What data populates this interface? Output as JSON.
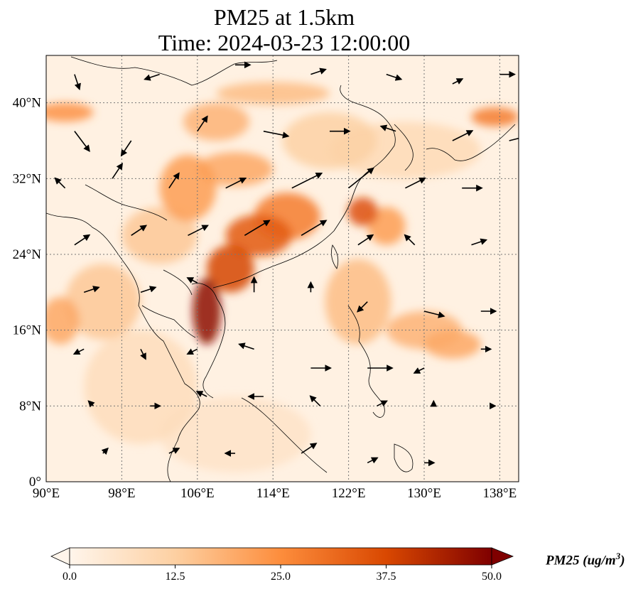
{
  "title": {
    "line1": "PM25 at 1.5km",
    "line2": "Time: 2024-03-23 12:00:00"
  },
  "map": {
    "projection": "PlateCarree",
    "lon_range": [
      90,
      140
    ],
    "lat_range": [
      0,
      45
    ],
    "gridlines": "dotted",
    "coastlines": true,
    "borders": true,
    "lon_ticks": [
      {
        "value": 90,
        "label": "90°E"
      },
      {
        "value": 98,
        "label": "98°E"
      },
      {
        "value": 106,
        "label": "106°E"
      },
      {
        "value": 114,
        "label": "114°E"
      },
      {
        "value": 122,
        "label": "122°E"
      },
      {
        "value": 130,
        "label": "130°E"
      },
      {
        "value": 138,
        "label": "138°E"
      }
    ],
    "lat_ticks": [
      {
        "value": 0,
        "label": "0°"
      },
      {
        "value": 8,
        "label": "8°N"
      },
      {
        "value": 16,
        "label": "16°N"
      },
      {
        "value": 24,
        "label": "24°N"
      },
      {
        "value": 32,
        "label": "32°N"
      },
      {
        "value": 40,
        "label": "40°N"
      }
    ]
  },
  "colorbar": {
    "title": "PM25 (ug/m3)",
    "title_main": "PM25 (ug/m",
    "title_sup": "3",
    "title_end": ")",
    "min": 0,
    "max": 50,
    "extend": "both",
    "colormap": [
      "#fff5eb",
      "#fdd0a2",
      "#fd8d3c",
      "#d94801",
      "#7f0000"
    ],
    "ticks": [
      "0.0",
      "12.5",
      "25.0",
      "37.5",
      "50.0"
    ]
  },
  "pm25_plumes": [
    {
      "lon": 107.0,
      "lat": 18.0,
      "rlon": 1.5,
      "rlat": 3.5,
      "val": 48
    },
    {
      "lon": 109.5,
      "lat": 22.5,
      "rlon": 2.5,
      "rlat": 2.5,
      "val": 38
    },
    {
      "lon": 112.5,
      "lat": 26.0,
      "rlon": 3.5,
      "rlat": 2.2,
      "val": 34
    },
    {
      "lon": 115.5,
      "lat": 28.0,
      "rlon": 3.5,
      "rlat": 2.5,
      "val": 28
    },
    {
      "lon": 123.5,
      "lat": 28.5,
      "rlon": 1.6,
      "rlat": 1.5,
      "val": 36
    },
    {
      "lon": 105.0,
      "lat": 31.0,
      "rlon": 3.0,
      "rlat": 3.5,
      "val": 22
    },
    {
      "lon": 110.0,
      "lat": 33.0,
      "rlon": 4.0,
      "rlat": 1.8,
      "val": 20
    },
    {
      "lon": 108.0,
      "lat": 38.0,
      "rlon": 3.5,
      "rlat": 2.0,
      "val": 18
    },
    {
      "lon": 114.0,
      "lat": 41.0,
      "rlon": 6.0,
      "rlat": 1.2,
      "val": 16
    },
    {
      "lon": 92.0,
      "lat": 39.0,
      "rlon": 3.0,
      "rlat": 1.0,
      "val": 24
    },
    {
      "lon": 137.5,
      "lat": 38.5,
      "rlon": 2.5,
      "rlat": 1.0,
      "val": 28
    },
    {
      "lon": 91.5,
      "lat": 17.0,
      "rlon": 2.0,
      "rlat": 2.5,
      "val": 20
    },
    {
      "lon": 96.0,
      "lat": 19.0,
      "rlon": 4.0,
      "rlat": 4.0,
      "val": 14
    },
    {
      "lon": 102.0,
      "lat": 26.0,
      "rlon": 4.0,
      "rlat": 3.0,
      "val": 14
    },
    {
      "lon": 123.0,
      "lat": 19.0,
      "rlon": 3.5,
      "rlat": 4.5,
      "val": 16
    },
    {
      "lon": 130.0,
      "lat": 16.0,
      "rlon": 4.0,
      "rlat": 2.0,
      "val": 18
    },
    {
      "lon": 133.0,
      "lat": 14.5,
      "rlon": 3.0,
      "rlat": 1.5,
      "val": 20
    },
    {
      "lon": 126.0,
      "lat": 27.0,
      "rlon": 2.0,
      "rlat": 2.0,
      "val": 22
    },
    {
      "lon": 128.0,
      "lat": 35.0,
      "rlon": 8.0,
      "rlat": 3.0,
      "val": 9
    },
    {
      "lon": 100.0,
      "lat": 10.0,
      "rlon": 6.0,
      "rlat": 6.0,
      "val": 8
    },
    {
      "lon": 110.0,
      "lat": 5.0,
      "rlon": 8.0,
      "rlat": 4.0,
      "val": 6
    },
    {
      "lon": 120.0,
      "lat": 36.0,
      "rlon": 5.0,
      "rlat": 3.0,
      "val": 12
    }
  ],
  "wind_vectors": [
    {
      "lon": 93,
      "lat": 43,
      "u": 1,
      "v": -3
    },
    {
      "lon": 102,
      "lat": 43,
      "u": -3,
      "v": -1
    },
    {
      "lon": 110,
      "lat": 44,
      "u": 3,
      "v": 0
    },
    {
      "lon": 118,
      "lat": 43,
      "u": 3,
      "v": 1
    },
    {
      "lon": 126,
      "lat": 43,
      "u": 3,
      "v": -1
    },
    {
      "lon": 133,
      "lat": 42,
      "u": 2,
      "v": 1
    },
    {
      "lon": 138,
      "lat": 43,
      "u": 3,
      "v": 0
    },
    {
      "lon": 93,
      "lat": 37,
      "u": 3,
      "v": -4
    },
    {
      "lon": 99,
      "lat": 36,
      "u": -2,
      "v": -3
    },
    {
      "lon": 106,
      "lat": 37,
      "u": 2,
      "v": 3
    },
    {
      "lon": 113,
      "lat": 37,
      "u": 5,
      "v": -1
    },
    {
      "lon": 120,
      "lat": 37,
      "u": 4,
      "v": 0
    },
    {
      "lon": 127,
      "lat": 37,
      "u": -3,
      "v": 1
    },
    {
      "lon": 133,
      "lat": 36,
      "u": 4,
      "v": 2
    },
    {
      "lon": 139,
      "lat": 36,
      "u": 4,
      "v": 1
    },
    {
      "lon": 92,
      "lat": 31,
      "u": -2,
      "v": 2
    },
    {
      "lon": 97,
      "lat": 32,
      "u": 2,
      "v": 3
    },
    {
      "lon": 103,
      "lat": 31,
      "u": 2,
      "v": 3
    },
    {
      "lon": 109,
      "lat": 31,
      "u": 4,
      "v": 2
    },
    {
      "lon": 116,
      "lat": 31,
      "u": 6,
      "v": 3
    },
    {
      "lon": 122,
      "lat": 31,
      "u": 5,
      "v": 4
    },
    {
      "lon": 128,
      "lat": 31,
      "u": 4,
      "v": 2
    },
    {
      "lon": 134,
      "lat": 31,
      "u": 4,
      "v": 0
    },
    {
      "lon": 93,
      "lat": 25,
      "u": 3,
      "v": 2
    },
    {
      "lon": 99,
      "lat": 26,
      "u": 3,
      "v": 2
    },
    {
      "lon": 105,
      "lat": 26,
      "u": 4,
      "v": 2
    },
    {
      "lon": 111,
      "lat": 26,
      "u": 5,
      "v": 3
    },
    {
      "lon": 117,
      "lat": 26,
      "u": 5,
      "v": 3
    },
    {
      "lon": 123,
      "lat": 25,
      "u": 3,
      "v": 2
    },
    {
      "lon": 129,
      "lat": 25,
      "u": -2,
      "v": 2
    },
    {
      "lon": 135,
      "lat": 25,
      "u": 3,
      "v": 1
    },
    {
      "lon": 94,
      "lat": 20,
      "u": 3,
      "v": 1
    },
    {
      "lon": 100,
      "lat": 20,
      "u": 3,
      "v": 1
    },
    {
      "lon": 106,
      "lat": 21,
      "u": -2,
      "v": 1
    },
    {
      "lon": 112,
      "lat": 20,
      "u": 0,
      "v": 3
    },
    {
      "lon": 118,
      "lat": 20,
      "u": 0,
      "v": 2
    },
    {
      "lon": 124,
      "lat": 19,
      "u": -2,
      "v": -2
    },
    {
      "lon": 130,
      "lat": 18,
      "u": 4,
      "v": -1
    },
    {
      "lon": 136,
      "lat": 18,
      "u": 3,
      "v": 0
    },
    {
      "lon": 94,
      "lat": 14,
      "u": -2,
      "v": -1
    },
    {
      "lon": 100,
      "lat": 14,
      "u": 1,
      "v": -2
    },
    {
      "lon": 106,
      "lat": 14,
      "u": -2,
      "v": -1
    },
    {
      "lon": 112,
      "lat": 14,
      "u": -3,
      "v": 1
    },
    {
      "lon": 118,
      "lat": 12,
      "u": 4,
      "v": 0
    },
    {
      "lon": 124,
      "lat": 12,
      "u": 5,
      "v": 0
    },
    {
      "lon": 130,
      "lat": 12,
      "u": -2,
      "v": -1
    },
    {
      "lon": 136,
      "lat": 14,
      "u": 2,
      "v": 0
    },
    {
      "lon": 95,
      "lat": 8,
      "u": -1,
      "v": 1
    },
    {
      "lon": 101,
      "lat": 8,
      "u": 2,
      "v": 0
    },
    {
      "lon": 107,
      "lat": 9,
      "u": -2,
      "v": 1
    },
    {
      "lon": 113,
      "lat": 9,
      "u": -3,
      "v": 0
    },
    {
      "lon": 119,
      "lat": 8,
      "u": -2,
      "v": 2
    },
    {
      "lon": 125,
      "lat": 8,
      "u": 2,
      "v": 1
    },
    {
      "lon": 131,
      "lat": 8,
      "u": 0,
      "v": 1
    },
    {
      "lon": 137,
      "lat": 8,
      "u": 1,
      "v": 0
    },
    {
      "lon": 96,
      "lat": 3,
      "u": 1,
      "v": 1
    },
    {
      "lon": 103,
      "lat": 3,
      "u": 2,
      "v": 1
    },
    {
      "lon": 110,
      "lat": 3,
      "u": -2,
      "v": 0
    },
    {
      "lon": 117,
      "lat": 3,
      "u": 3,
      "v": 2
    },
    {
      "lon": 124,
      "lat": 2,
      "u": 2,
      "v": 1
    },
    {
      "lon": 130,
      "lat": 2,
      "u": 2,
      "v": 0
    }
  ]
}
